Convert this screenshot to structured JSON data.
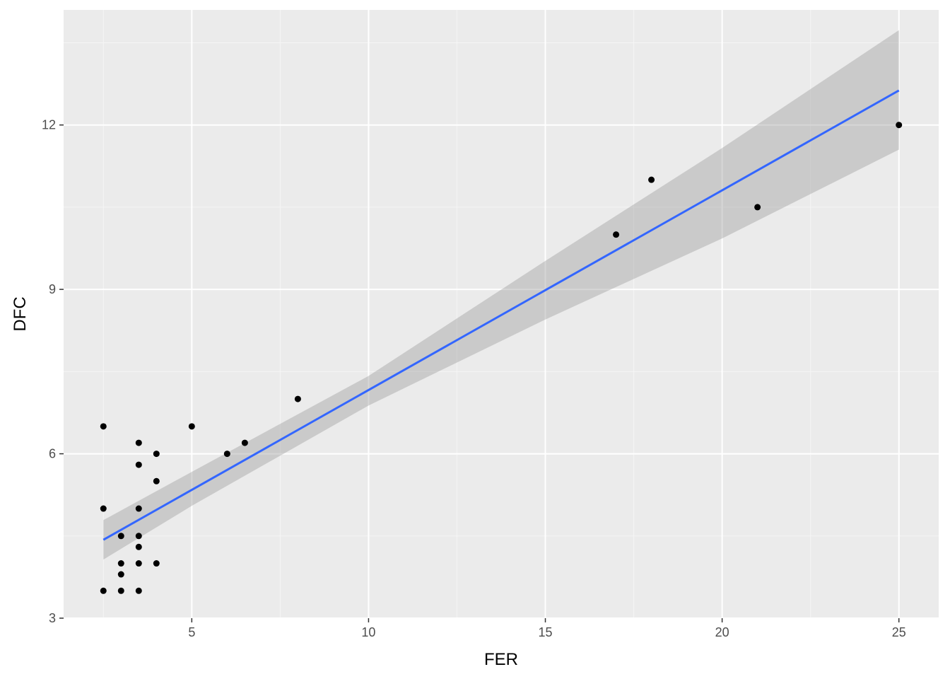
{
  "chart_data": {
    "type": "scatter",
    "title": "",
    "xlabel": "FER",
    "ylabel": "DFC",
    "xlim": [
      1.375,
      26.125
    ],
    "ylim": [
      3.0,
      14.1
    ],
    "x_ticks": [
      5,
      10,
      15,
      20,
      25
    ],
    "x_tick_labels": [
      "5",
      "10",
      "15",
      "20",
      "25"
    ],
    "x_minor_ticks": [
      2.5,
      7.5,
      12.5,
      17.5,
      22.5
    ],
    "y_ticks": [
      3,
      6,
      9,
      12
    ],
    "y_tick_labels": [
      "3",
      "6",
      "9",
      "12"
    ],
    "y_minor_ticks": [
      4.5,
      7.5,
      10.5,
      13.5
    ],
    "grid": true,
    "legend": "none",
    "points": {
      "x": [
        2.5,
        2.5,
        2.5,
        3.0,
        3.0,
        3.0,
        3.0,
        3.5,
        3.5,
        3.5,
        3.5,
        3.5,
        3.5,
        3.5,
        4.0,
        4.0,
        4.0,
        5.0,
        6.0,
        6.5,
        8.0,
        17.0,
        18.0,
        21.0,
        25.0
      ],
      "y": [
        6.5,
        5.0,
        3.5,
        4.5,
        4.0,
        3.8,
        3.5,
        6.2,
        5.8,
        5.0,
        4.5,
        4.3,
        4.0,
        3.5,
        6.0,
        5.5,
        4.0,
        6.5,
        6.0,
        6.2,
        7.0,
        10.0,
        11.0,
        10.5,
        12.0
      ]
    },
    "fit": {
      "method": "lm",
      "x_range": [
        2.5,
        25.0
      ],
      "y_at_range": [
        4.43,
        12.63
      ],
      "band": {
        "x": [
          2.5,
          5.0,
          10.0,
          15.0,
          20.0,
          25.0
        ],
        "lower": [
          4.07,
          5.05,
          6.88,
          8.45,
          9.93,
          11.55
        ],
        "upper": [
          4.79,
          5.67,
          7.42,
          9.52,
          11.58,
          13.73
        ]
      }
    },
    "colors": {
      "panel_background": "#ebebeb",
      "grid_major": "#ffffff",
      "grid_minor": "#f5f5f5",
      "point": "#000000",
      "fit_line": "#3366ff",
      "band": "#999999"
    }
  }
}
